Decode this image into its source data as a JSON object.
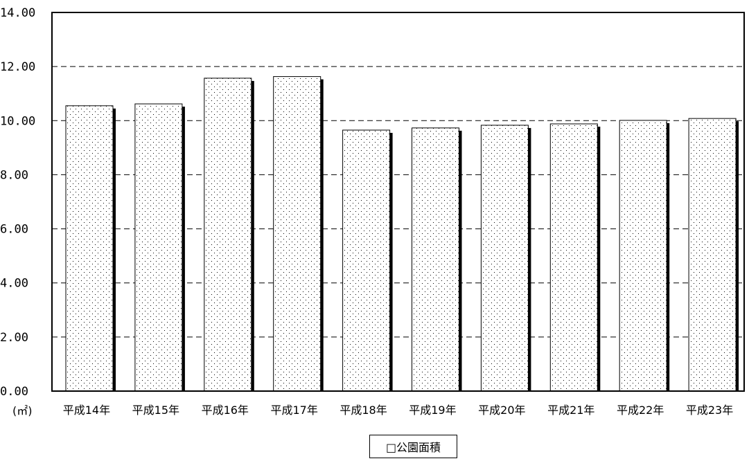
{
  "chart_data": {
    "type": "bar",
    "categories": [
      "平成14年",
      "平成15年",
      "平成16年",
      "平成17年",
      "平成18年",
      "平成19年",
      "平成20年",
      "平成21年",
      "平成22年",
      "平成23年"
    ],
    "series": [
      {
        "name": "公園面積",
        "values": [
          10.55,
          10.62,
          11.57,
          11.63,
          9.65,
          9.73,
          9.83,
          9.88,
          10.01,
          10.08
        ]
      }
    ],
    "ylim": [
      0,
      14
    ],
    "yticks": [
      "0.00",
      "2.00",
      "4.00",
      "6.00",
      "8.00",
      "10.00",
      "12.00",
      "14.00"
    ],
    "yunit": "(㎡)",
    "grid": true,
    "legend_position": "bottom-center",
    "bar_fill": "dotted",
    "shadow_color": "#000000"
  },
  "legend": {
    "label": "□公園面積"
  }
}
